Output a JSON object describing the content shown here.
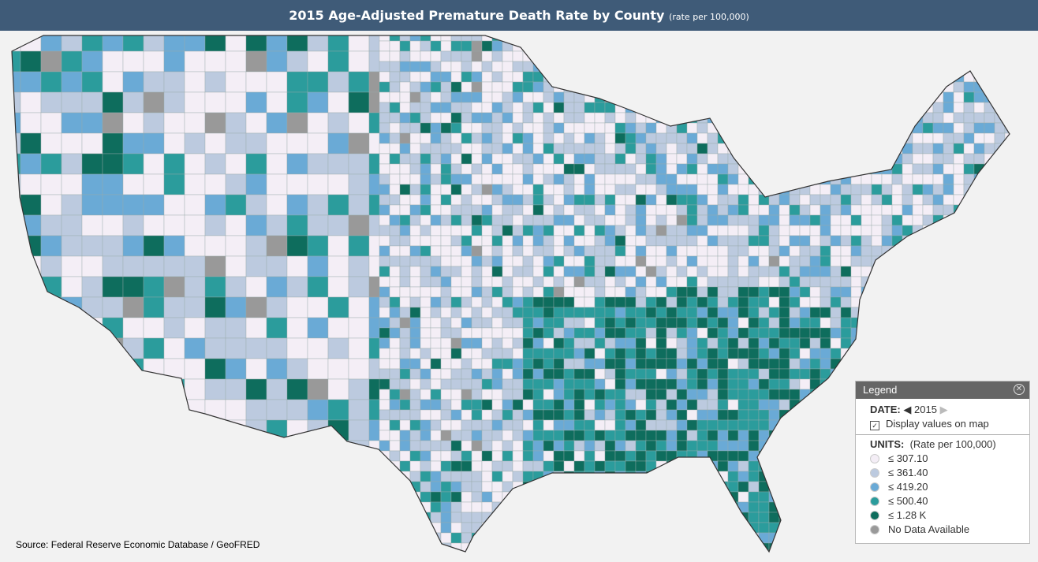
{
  "header": {
    "title": "2015 Age-Adjusted Premature Death Rate by County",
    "subtitle": "(rate per 100,000)"
  },
  "source": "Source: Federal Reserve Economic Database / GeoFRED",
  "legend": {
    "title": "Legend",
    "date_label": "DATE:",
    "date_value": "2015",
    "display_values_label": "Display values on map",
    "display_values_checked": true,
    "units_label": "UNITS:",
    "units_value": "(Rate per 100,000)",
    "classes": [
      {
        "label": "≤ 307.10",
        "color": "#f4eef6"
      },
      {
        "label": "≤ 361.40",
        "color": "#bccadf"
      },
      {
        "label": "≤ 419.20",
        "color": "#6aaad6"
      },
      {
        "label": "≤ 500.40",
        "color": "#2b9c9c"
      },
      {
        "label": "≤ 1.28 K",
        "color": "#0e6d5d"
      },
      {
        "label": "No Data Available",
        "color": "#999999"
      }
    ]
  }
}
